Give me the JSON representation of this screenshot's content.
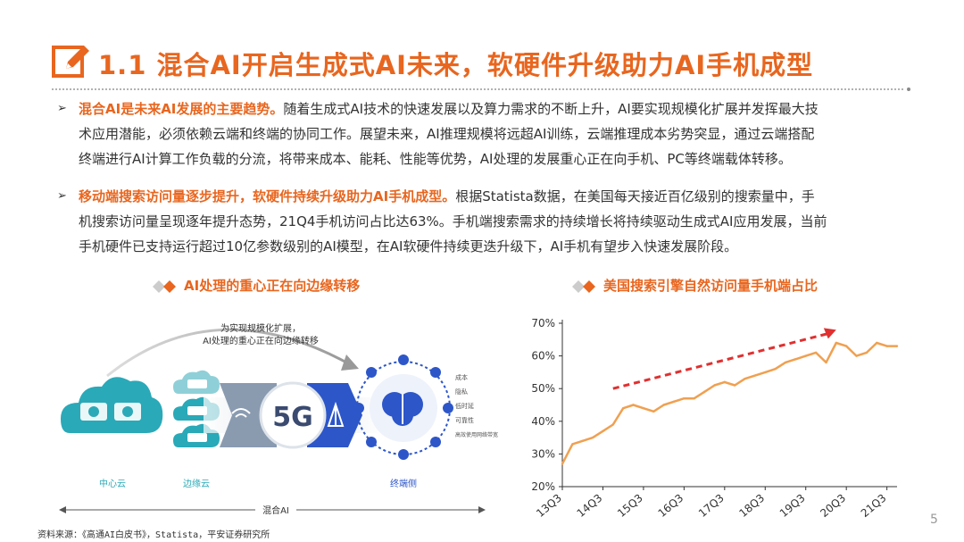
{
  "header": {
    "title": "1.1 混合AI开启生成式AI未来，软硬件升级助力AI手机成型"
  },
  "paragraphs": [
    {
      "bullet": "➢",
      "highlight": "混合AI是未来AI发展的主要趋势。",
      "lines": [
        "随着生成式AI技术的快速发展以及算力需求的不断上升，AI要实现规模化扩展并发挥最大技",
        "术应用潜能，必须依赖云端和终端的协同工作。展望未来，AI推理规模将远超AI训练，云端推理成本劣势突显，通过云端搭配",
        "终端进行AI计算工作负载的分流，将带来成本、能耗、性能等优势，AI处理的发展重心正在向手机、PC等终端载体转移。"
      ]
    },
    {
      "bullet": "➢",
      "highlight": "移动端搜索访问量逐步提升，软硬件持续升级助力AI手机成型。",
      "lines": [
        "根据Statista数据，在美国每天接近百亿级别的搜索量中，手",
        "机搜索访问量呈现逐年提升态势，21Q4手机访问占比达63%。手机端搜索需求的持续增长将持续驱动生成式AI应用发展，当前",
        "手机硬件已支持运行超过10亿参数级别的AI模型，在AI软硬件持续更迭升级下，AI手机有望步入快速发展阶段。"
      ]
    }
  ],
  "left_figure": {
    "heading": "AI处理的重心正在向边缘转移",
    "arc_caption_1": "为实现规模化扩展，",
    "arc_caption_2": "AI处理的重心正在向边缘转移",
    "network_label": "5G",
    "labels": {
      "central_cloud": "中心云",
      "edge_cloud": "边缘云",
      "terminal": "终端侧",
      "hybrid": "混合AI"
    },
    "benefits": [
      "成本",
      "隐私",
      "低时延",
      "可靠性",
      "高效使用网络带宽"
    ],
    "colors": {
      "teal": "#2aa9b8",
      "blue": "#2d56c9",
      "gray": "#8a9bb0"
    }
  },
  "right_figure": {
    "heading": "美国搜索引擎自然访问量手机端占比"
  },
  "chart_data": {
    "type": "line",
    "title": "美国搜索引擎自然访问量手机端占比",
    "xlabel": "",
    "ylabel": "",
    "ylim": [
      20,
      70
    ],
    "yticks": [
      "20%",
      "30%",
      "40%",
      "50%",
      "60%",
      "70%"
    ],
    "xticks": [
      "13Q3",
      "14Q3",
      "15Q3",
      "16Q3",
      "17Q3",
      "18Q3",
      "19Q3",
      "20Q3",
      "21Q3"
    ],
    "series": [
      {
        "color": "#f0a050",
        "x": [
          "13Q3",
          "13Q4",
          "14Q1",
          "14Q2",
          "14Q3",
          "14Q4",
          "15Q1",
          "15Q2",
          "15Q3",
          "15Q4",
          "16Q1",
          "16Q2",
          "16Q3",
          "16Q4",
          "17Q1",
          "17Q2",
          "17Q3",
          "17Q4",
          "18Q1",
          "18Q2",
          "18Q3",
          "18Q4",
          "19Q1",
          "19Q2",
          "19Q3",
          "19Q4",
          "20Q1",
          "20Q2",
          "20Q3",
          "20Q4",
          "21Q1",
          "21Q2",
          "21Q3",
          "21Q4"
        ],
        "values": [
          27,
          33,
          34,
          35,
          37,
          39,
          44,
          45,
          44,
          43,
          45,
          46,
          47,
          47,
          49,
          51,
          52,
          51,
          53,
          54,
          55,
          56,
          58,
          59,
          60,
          61,
          58,
          64,
          63,
          60,
          61,
          64,
          63,
          63
        ]
      }
    ],
    "trend_arrow_color": "#e03030",
    "grid": false
  },
  "footer": {
    "source": "资料来源：《高通AI白皮书》，Statista，平安证券研究所",
    "page": "5"
  },
  "theme": {
    "accent": "#e8661f",
    "divider": "#888888"
  }
}
